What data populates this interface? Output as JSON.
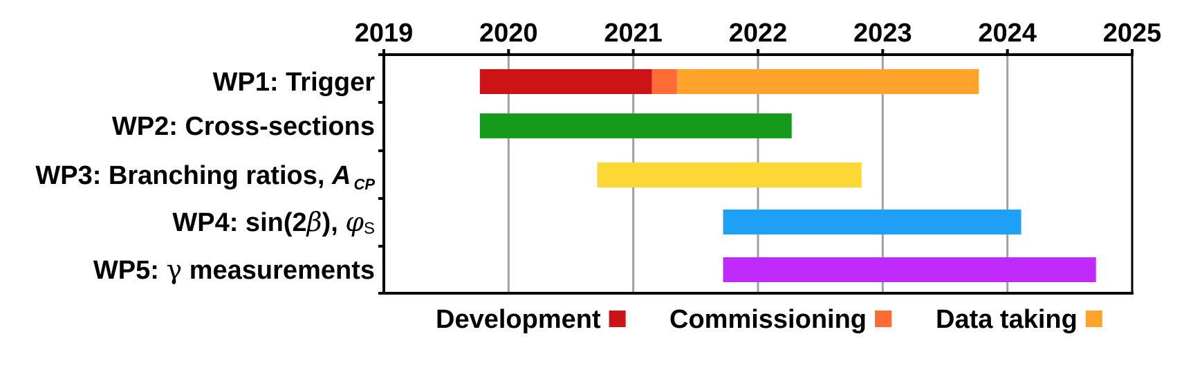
{
  "chart_data": {
    "type": "gantt",
    "x_ticks": [
      "2019",
      "2020",
      "2021",
      "2022",
      "2023",
      "2024",
      "2025"
    ],
    "xlim": [
      2019,
      2025
    ],
    "grid": true,
    "legend_position": "bottom",
    "rows": [
      {
        "label_parts": [
          {
            "text": "WP1: Trigger"
          }
        ],
        "segments": [
          {
            "phase": "Development",
            "start": 2019.77,
            "end": 2021.15
          },
          {
            "phase": "Commissioning",
            "start": 2021.15,
            "end": 2021.35
          },
          {
            "phase": "Data taking",
            "start": 2021.35,
            "end": 2023.77
          }
        ]
      },
      {
        "label_parts": [
          {
            "text": "WP2: Cross-sections"
          }
        ],
        "segments": [
          {
            "color": "#169a1c",
            "start": 2019.77,
            "end": 2022.27
          }
        ]
      },
      {
        "label_parts": [
          {
            "text": "WP3: Branching ratios, "
          },
          {
            "text": "A",
            "style": "italic"
          },
          {
            "text": "CP",
            "style": "italic-sub"
          }
        ],
        "segments": [
          {
            "color": "#fdd835",
            "start": 2020.71,
            "end": 2022.83
          }
        ]
      },
      {
        "label_parts": [
          {
            "text": "WP4: sin(2"
          },
          {
            "text": "β",
            "style": "greek"
          },
          {
            "text": "), "
          },
          {
            "text": "φ",
            "style": "greek"
          },
          {
            "text": "S",
            "style": "sub"
          }
        ],
        "segments": [
          {
            "color": "#1ea0f8",
            "start": 2021.72,
            "end": 2024.11
          }
        ]
      },
      {
        "label_parts": [
          {
            "text": "WP5: "
          },
          {
            "text": "γ",
            "style": "greek-upright"
          },
          {
            "text": " measurements"
          }
        ],
        "segments": [
          {
            "color": "#c02bfb",
            "start": 2021.72,
            "end": 2024.71
          }
        ]
      }
    ],
    "legend": [
      {
        "label": "Development",
        "color": "#cc1417"
      },
      {
        "label": "Commissioning",
        "color": "#ff6b34"
      },
      {
        "label": "Data taking",
        "color": "#ffa32b"
      }
    ],
    "axis_color": "#000000",
    "grid_color": "#a0a0a0"
  }
}
